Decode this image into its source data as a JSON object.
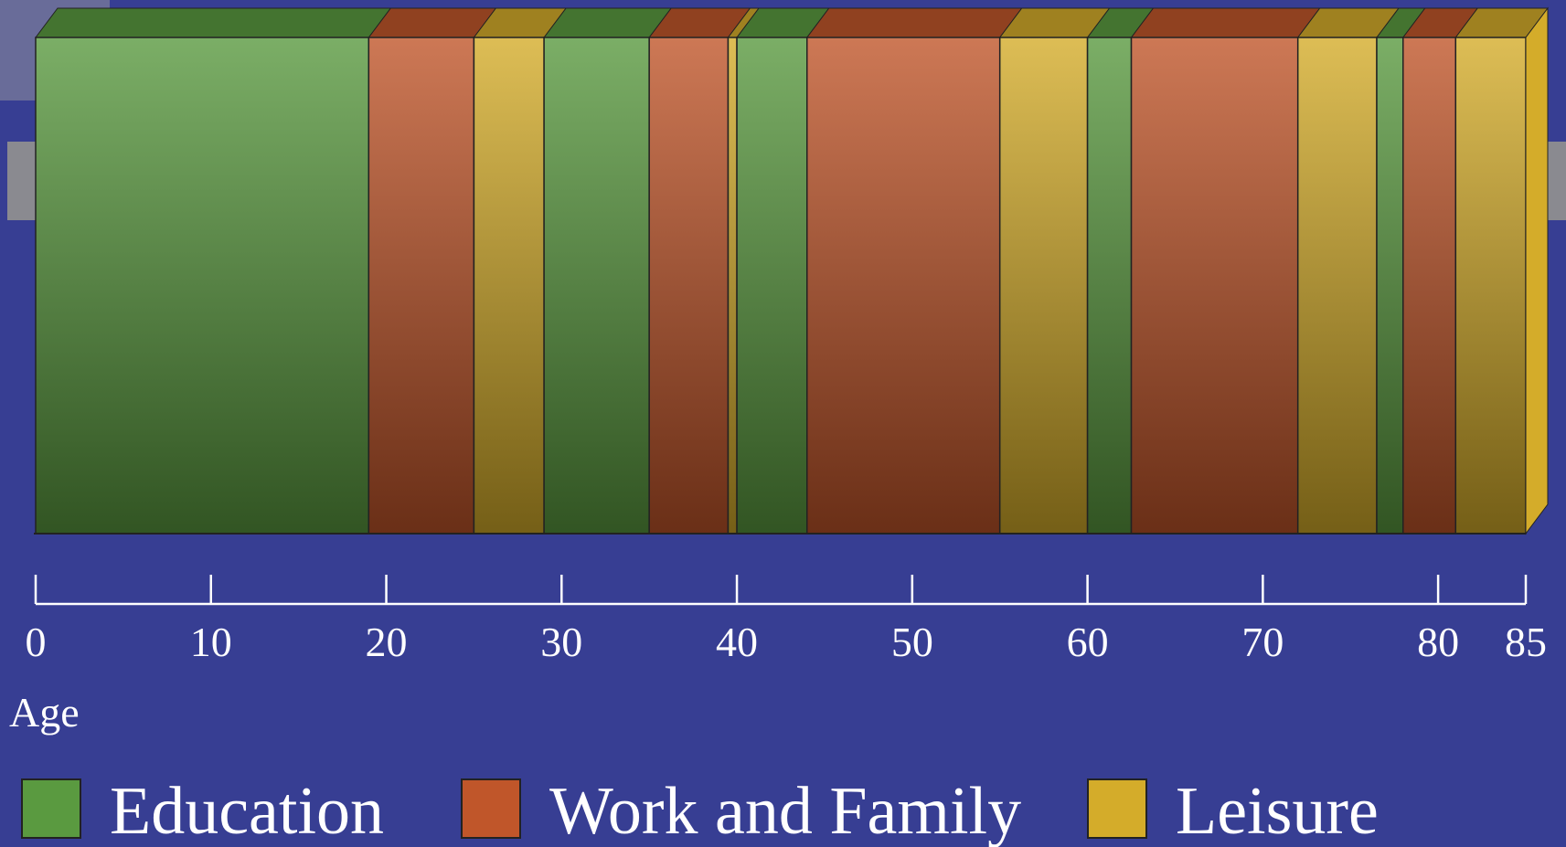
{
  "chart_data": {
    "type": "timeline-bar",
    "x_label": "Age",
    "xlim": [
      0,
      85
    ],
    "xticks": [
      0,
      10,
      20,
      30,
      40,
      50,
      60,
      70,
      80,
      85
    ],
    "series": [
      {
        "name": "Education",
        "color": "#5a9a40",
        "values": [
          19,
          null,
          null,
          6,
          null,
          null,
          4,
          null,
          null,
          2.5,
          null,
          null,
          1.5,
          null,
          null
        ]
      },
      {
        "name": "Work and Family",
        "color": "#c0562a",
        "values": [
          null,
          6,
          null,
          null,
          4.5,
          null,
          null,
          11,
          null,
          null,
          9.5,
          null,
          null,
          3,
          null
        ]
      },
      {
        "name": "Leisure",
        "color": "#d4ac2a",
        "values": [
          null,
          null,
          4,
          null,
          null,
          0.5,
          null,
          null,
          5,
          null,
          null,
          4.5,
          null,
          null,
          4
        ]
      }
    ]
  }
}
